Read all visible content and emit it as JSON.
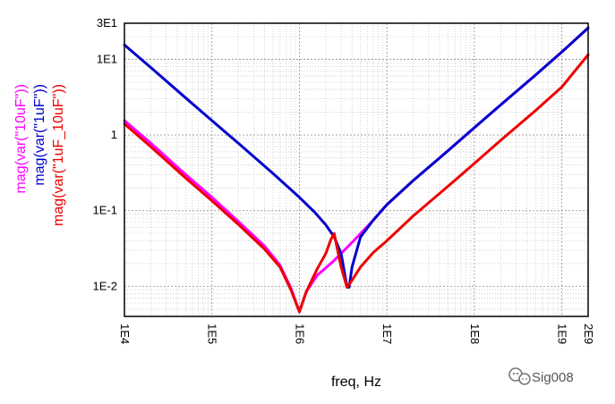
{
  "chart_data": {
    "type": "line",
    "xlabel": "freq, Hz",
    "x_scale": "log",
    "y_scale": "log",
    "xlim": [
      10000,
      2000000000
    ],
    "ylim": [
      0.004,
      30
    ],
    "x_ticks": [
      {
        "value": 10000,
        "label": "1E4"
      },
      {
        "value": 100000,
        "label": "1E5"
      },
      {
        "value": 1000000,
        "label": "1E6"
      },
      {
        "value": 10000000,
        "label": "1E7"
      },
      {
        "value": 100000000,
        "label": "1E8"
      },
      {
        "value": 1000000000,
        "label": "1E9"
      },
      {
        "value": 2000000000,
        "label": "2E9"
      }
    ],
    "y_ticks": [
      {
        "value": 30,
        "label": "3E1"
      },
      {
        "value": 10,
        "label": "1E1"
      },
      {
        "value": 1,
        "label": "1"
      },
      {
        "value": 0.1,
        "label": "1E-1"
      },
      {
        "value": 0.01,
        "label": "1E-2"
      }
    ],
    "grid": true,
    "series": [
      {
        "name": "mag(var(\"10uF\"))",
        "color": "#ff00ff",
        "points": [
          [
            10000,
            1.55
          ],
          [
            20000,
            0.78
          ],
          [
            50000,
            0.3
          ],
          [
            100000,
            0.15
          ],
          [
            200000,
            0.072
          ],
          [
            400000,
            0.034
          ],
          [
            600000,
            0.019
          ],
          [
            800000,
            0.0095
          ],
          [
            1000000,
            0.0046
          ],
          [
            1200000,
            0.0085
          ],
          [
            1600000,
            0.014
          ],
          [
            2500000,
            0.022
          ],
          [
            4000000,
            0.038
          ],
          [
            7000000,
            0.075
          ],
          [
            10000000,
            0.12
          ],
          [
            20000000,
            0.25
          ],
          [
            50000000,
            0.62
          ],
          [
            100000000,
            1.25
          ],
          [
            200000000,
            2.5
          ],
          [
            500000000,
            6.2
          ],
          [
            1000000000,
            12.5
          ],
          [
            2000000000,
            26
          ]
        ]
      },
      {
        "name": "mag(var(\"1uF\"))",
        "color": "#0000cc",
        "points": [
          [
            10000,
            15.5
          ],
          [
            20000,
            7.8
          ],
          [
            50000,
            3.1
          ],
          [
            100000,
            1.55
          ],
          [
            200000,
            0.78
          ],
          [
            500000,
            0.31
          ],
          [
            1000000,
            0.15
          ],
          [
            1500000,
            0.095
          ],
          [
            2000000,
            0.065
          ],
          [
            2500000,
            0.045
          ],
          [
            3000000,
            0.027
          ],
          [
            3500000,
            0.0098
          ],
          [
            3700000,
            0.0097
          ],
          [
            4000000,
            0.018
          ],
          [
            5000000,
            0.045
          ],
          [
            7000000,
            0.075
          ],
          [
            10000000,
            0.12
          ],
          [
            20000000,
            0.25
          ],
          [
            50000000,
            0.62
          ],
          [
            100000000,
            1.25
          ],
          [
            200000000,
            2.5
          ],
          [
            500000000,
            6.2
          ],
          [
            1000000000,
            12.5
          ],
          [
            2000000000,
            26
          ]
        ]
      },
      {
        "name": "mag(var(\"1uF_10uF\"))",
        "color": "#ee0000",
        "points": [
          [
            10000,
            1.4
          ],
          [
            20000,
            0.7
          ],
          [
            50000,
            0.27
          ],
          [
            100000,
            0.135
          ],
          [
            200000,
            0.066
          ],
          [
            400000,
            0.031
          ],
          [
            600000,
            0.018
          ],
          [
            800000,
            0.009
          ],
          [
            1000000,
            0.0046
          ],
          [
            1200000,
            0.0085
          ],
          [
            1600000,
            0.017
          ],
          [
            2000000,
            0.027
          ],
          [
            2300000,
            0.042
          ],
          [
            2500000,
            0.05
          ],
          [
            2700000,
            0.032
          ],
          [
            3000000,
            0.018
          ],
          [
            3500000,
            0.0097
          ],
          [
            4000000,
            0.012
          ],
          [
            5000000,
            0.018
          ],
          [
            7000000,
            0.028
          ],
          [
            10000000,
            0.04
          ],
          [
            20000000,
            0.085
          ],
          [
            50000000,
            0.21
          ],
          [
            100000000,
            0.42
          ],
          [
            200000000,
            0.85
          ],
          [
            500000000,
            2.1
          ],
          [
            1000000000,
            4.3
          ],
          [
            2000000000,
            11.5
          ]
        ]
      }
    ],
    "watermark": "Sig008"
  }
}
